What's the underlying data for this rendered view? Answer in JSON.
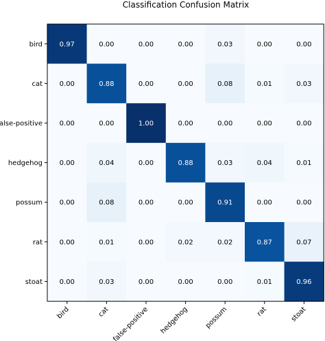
{
  "chart_data": {
    "type": "heatmap",
    "title": "Classification Confusion Matrix",
    "xlabel": "",
    "ylabel": "",
    "x_categories": [
      "bird",
      "cat",
      "false-positive",
      "hedgehog",
      "possum",
      "rat",
      "stoat"
    ],
    "y_categories": [
      "bird",
      "cat",
      "false-positive",
      "hedgehog",
      "possum",
      "rat",
      "stoat"
    ],
    "values": [
      [
        0.97,
        0.0,
        0.0,
        0.0,
        0.03,
        0.0,
        0.0
      ],
      [
        0.0,
        0.88,
        0.0,
        0.0,
        0.08,
        0.01,
        0.03
      ],
      [
        0.0,
        0.0,
        1.0,
        0.0,
        0.0,
        0.0,
        0.0
      ],
      [
        0.0,
        0.04,
        0.0,
        0.88,
        0.03,
        0.04,
        0.01
      ],
      [
        0.0,
        0.08,
        0.0,
        0.0,
        0.91,
        0.0,
        0.0
      ],
      [
        0.0,
        0.01,
        0.0,
        0.02,
        0.02,
        0.87,
        0.07
      ],
      [
        0.0,
        0.03,
        0.0,
        0.0,
        0.0,
        0.01,
        0.96
      ]
    ],
    "value_labels": [
      [
        "0.97",
        "0.00",
        "0.00",
        "0.00",
        "0.03",
        "0.00",
        "0.00"
      ],
      [
        "0.00",
        "0.88",
        "0.00",
        "0.00",
        "0.08",
        "0.01",
        "0.03"
      ],
      [
        "0.00",
        "0.00",
        "1.00",
        "0.00",
        "0.00",
        "0.00",
        "0.00"
      ],
      [
        "0.00",
        "0.04",
        "0.00",
        "0.88",
        "0.03",
        "0.04",
        "0.01"
      ],
      [
        "0.00",
        "0.08",
        "0.00",
        "0.00",
        "0.91",
        "0.00",
        "0.00"
      ],
      [
        "0.00",
        "0.01",
        "0.00",
        "0.02",
        "0.02",
        "0.87",
        "0.07"
      ],
      [
        "0.00",
        "0.03",
        "0.00",
        "0.00",
        "0.00",
        "0.01",
        "0.96"
      ]
    ],
    "value_range": [
      0,
      1
    ],
    "colormap": "Blues",
    "colors": {
      "low": "#f7fbff",
      "high": "#08306b"
    },
    "grid": false,
    "x_tick_rotation_deg": 45
  }
}
